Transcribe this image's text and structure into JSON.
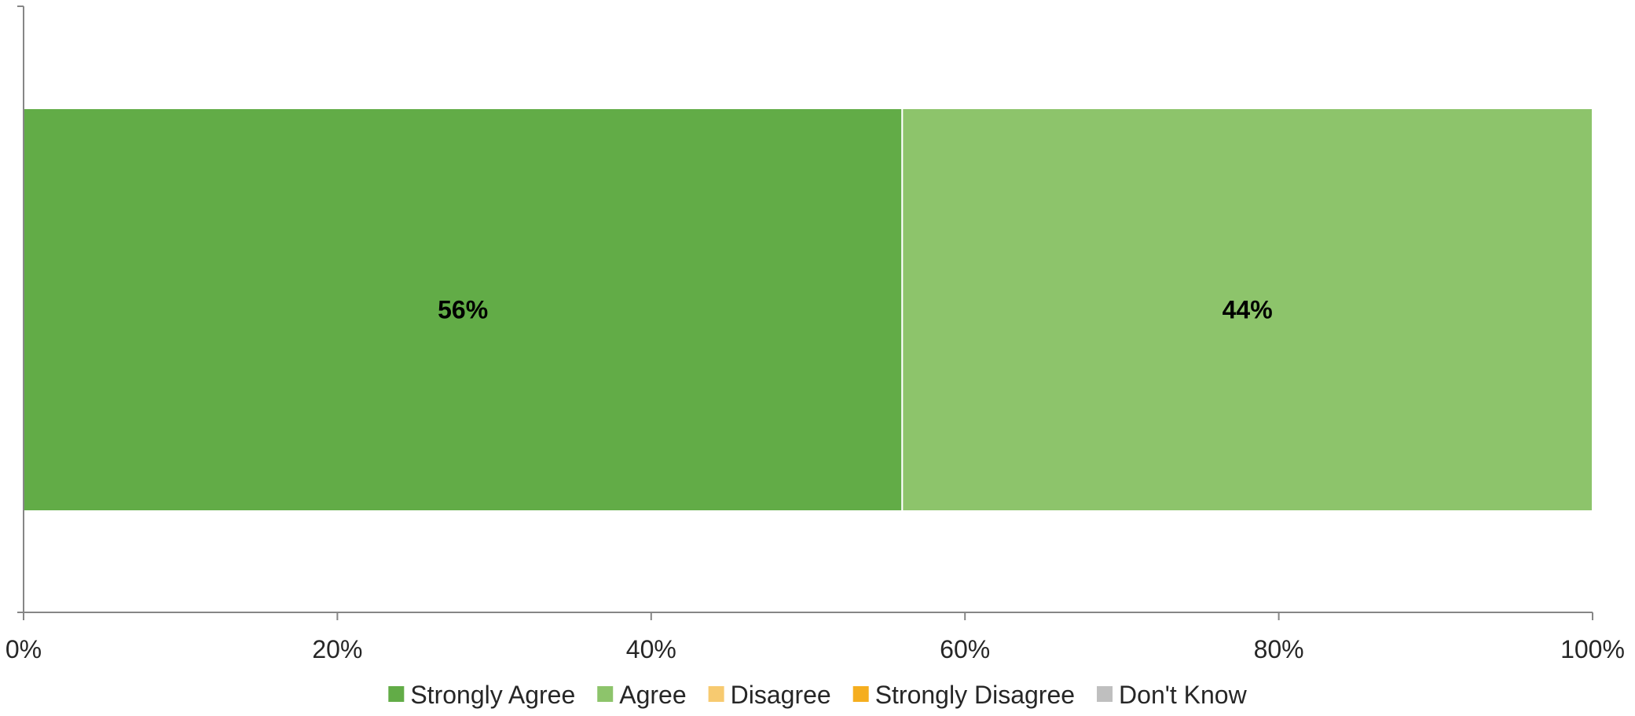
{
  "chart_data": {
    "type": "bar",
    "orientation": "horizontal",
    "stacked": true,
    "categories": [
      ""
    ],
    "series": [
      {
        "name": "Strongly Agree",
        "values": [
          56
        ],
        "label": "56%",
        "color": "#62AC47"
      },
      {
        "name": "Agree",
        "values": [
          44
        ],
        "label": "44%",
        "color": "#8DC46B"
      },
      {
        "name": "Disagree",
        "values": [
          0
        ],
        "label": "",
        "color": "#F7CA70"
      },
      {
        "name": "Strongly Disagree",
        "values": [
          0
        ],
        "label": "",
        "color": "#F5AE1F"
      },
      {
        "name": "Don't Know",
        "values": [
          0
        ],
        "label": "",
        "color": "#BFBFBF"
      }
    ],
    "x_ticks": [
      "0%",
      "20%",
      "40%",
      "60%",
      "80%",
      "100%"
    ],
    "xlim": [
      0,
      100
    ],
    "title": "",
    "xlabel": "",
    "ylabel": "",
    "grid": false,
    "legend_position": "bottom"
  }
}
